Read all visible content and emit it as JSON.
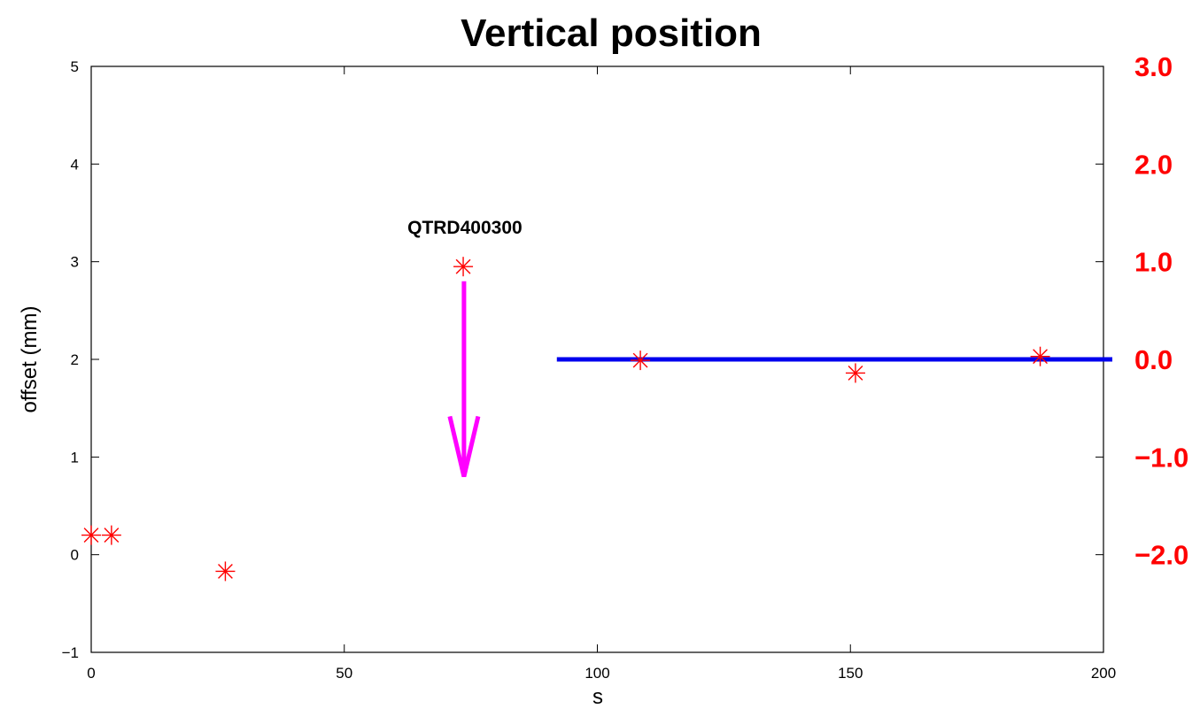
{
  "chart_data": {
    "type": "scatter",
    "title": "Vertical position",
    "xlabel": "s",
    "ylabel": "offset (mm)",
    "xlim": [
      0,
      200
    ],
    "ylim": [
      -1,
      5
    ],
    "x_ticks": [
      "0",
      "50",
      "100",
      "150",
      "200"
    ],
    "y_ticks": [
      "-1",
      "0",
      "1",
      "2",
      "3",
      "4",
      "5"
    ],
    "right_ticks": [
      "3.0",
      "2.0",
      "1.0",
      "0.0",
      "-1.0",
      "-2.0"
    ],
    "right_tick_color": "#ff0000",
    "grid": false,
    "series": [
      {
        "marker": "asterisk",
        "color": "#ff0000",
        "x": [
          0,
          4,
          26.5,
          73.5,
          108.5,
          151,
          187.5
        ],
        "y": [
          0.2,
          0.2,
          -0.17,
          2.95,
          1.99,
          1.86,
          2.03
        ]
      }
    ],
    "reference_line": {
      "x": [
        92,
        200
      ],
      "y": 2.0,
      "color": "#0000ee"
    },
    "annotation": {
      "text": "QTRD400300",
      "x": 74,
      "y": 3.35,
      "arrow": {
        "x": 74,
        "y_from": 2.8,
        "y_to": 0.8,
        "color": "#ff00ff"
      }
    }
  }
}
